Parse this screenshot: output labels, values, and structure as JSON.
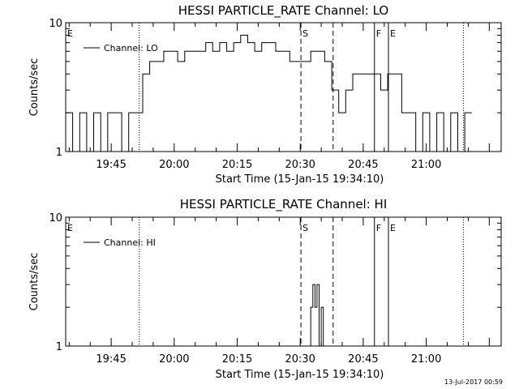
{
  "footer": "13-Jul-2017 00:59",
  "chart_data": [
    {
      "type": "line",
      "title": "HESSI PARTICLE_RATE Channel: LO",
      "xlabel": "Start Time (15-Jan-15 19:34:10)",
      "ylabel": "Counts/sec",
      "yscale": "log",
      "ylim": [
        1,
        10
      ],
      "y_tick_labels": [
        "1",
        "10"
      ],
      "xlim": [
        "19:34:10",
        "21:17:50"
      ],
      "x_tick_labels": [
        "19:45",
        "20:00",
        "20:15",
        "20:30",
        "20:45",
        "21:00"
      ],
      "legend": {
        "position": "top-left",
        "entries": [
          "Channel: LO"
        ]
      },
      "markers": [
        {
          "time": "19:34:10",
          "style": "none",
          "label": "E"
        },
        {
          "time": "19:51:40",
          "style": "dotted",
          "label": ""
        },
        {
          "time": "20:30:10",
          "style": "dashed",
          "label": "S"
        },
        {
          "time": "20:37:50",
          "style": "dashed",
          "label": ""
        },
        {
          "time": "20:47:40",
          "style": "solid",
          "label": "F"
        },
        {
          "time": "20:51:00",
          "style": "solid",
          "label": "E"
        },
        {
          "time": "21:08:50",
          "style": "dotted",
          "label": ""
        }
      ],
      "series": [
        {
          "name": "Channel: LO",
          "x": [
            "19:34:10",
            "19:35:50",
            "19:37:30",
            "19:39:10",
            "19:40:50",
            "19:42:30",
            "19:44:10",
            "19:45:50",
            "19:47:30",
            "19:49:10",
            "19:50:50",
            "19:52:30",
            "19:54:10",
            "19:55:50",
            "19:57:30",
            "19:59:10",
            "20:00:50",
            "20:02:30",
            "20:04:10",
            "20:05:50",
            "20:07:30",
            "20:09:10",
            "20:10:50",
            "20:12:30",
            "20:14:10",
            "20:15:50",
            "20:17:30",
            "20:19:10",
            "20:20:50",
            "20:22:30",
            "20:24:10",
            "20:25:50",
            "20:27:30",
            "20:29:10",
            "20:30:50",
            "20:32:30",
            "20:34:10",
            "20:35:50",
            "20:37:30",
            "20:39:10",
            "20:40:50",
            "20:42:30",
            "20:44:10",
            "20:45:50",
            "20:47:30",
            "20:49:10",
            "20:50:50",
            "20:52:30",
            "20:54:10",
            "20:55:50",
            "20:57:30",
            "20:59:10",
            "21:00:50",
            "21:02:30",
            "21:04:10",
            "21:05:50",
            "21:07:30",
            "21:09:10"
          ],
          "values": [
            2,
            1,
            2,
            1,
            2,
            1,
            2,
            2,
            1,
            2,
            2,
            4,
            5,
            5,
            6,
            6,
            5,
            6,
            6,
            6,
            7,
            6,
            7,
            6,
            7,
            8,
            7,
            6,
            7,
            7,
            6,
            6,
            5,
            5,
            5,
            6,
            6,
            5,
            3,
            2,
            3,
            4,
            4,
            4,
            4,
            3,
            4,
            4,
            2,
            2,
            1,
            2,
            1,
            2,
            1,
            2,
            1,
            2
          ]
        }
      ]
    },
    {
      "type": "line",
      "title": "HESSI PARTICLE_RATE Channel: HI",
      "xlabel": "Start Time (15-Jan-15 19:34:10)",
      "ylabel": "Counts/sec",
      "yscale": "log",
      "ylim": [
        1,
        10
      ],
      "y_tick_labels": [
        "1",
        "10"
      ],
      "xlim": [
        "19:34:10",
        "21:17:50"
      ],
      "x_tick_labels": [
        "19:45",
        "20:00",
        "20:15",
        "20:30",
        "20:45",
        "21:00"
      ],
      "legend": {
        "position": "top-left",
        "entries": [
          "Channel: HI"
        ]
      },
      "markers": [
        {
          "time": "19:34:10",
          "style": "none",
          "label": "E"
        },
        {
          "time": "19:51:40",
          "style": "dotted",
          "label": ""
        },
        {
          "time": "20:30:10",
          "style": "dashed",
          "label": "S"
        },
        {
          "time": "20:37:50",
          "style": "dashed",
          "label": ""
        },
        {
          "time": "20:47:40",
          "style": "solid",
          "label": "F"
        },
        {
          "time": "20:51:00",
          "style": "solid",
          "label": "E"
        },
        {
          "time": "21:08:50",
          "style": "dotted",
          "label": ""
        }
      ],
      "series": [
        {
          "name": "Channel: HI",
          "x": [
            "20:32:00",
            "20:32:30",
            "20:33:00",
            "20:33:30",
            "20:34:00",
            "20:34:30",
            "20:35:00",
            "20:35:30",
            "20:36:00"
          ],
          "values": [
            1,
            2,
            3,
            2,
            3,
            1,
            2,
            1,
            1
          ]
        }
      ]
    }
  ]
}
